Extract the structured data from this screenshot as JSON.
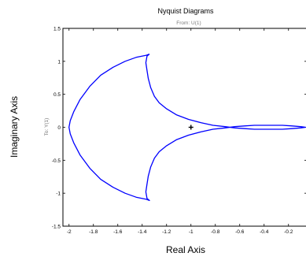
{
  "chart_data": {
    "type": "line",
    "title": "Nyquist Diagrams",
    "subtitle": "From: U(1)",
    "xlabel": "Real Axis",
    "ylabel": "Imaginary Axis",
    "output_label": "To: Y(1)",
    "xlim": [
      -2.05,
      -0.05
    ],
    "ylim": [
      -1.5,
      1.5
    ],
    "xticks": [
      -2,
      -1.8,
      -1.6,
      -1.4,
      -1.2,
      -1,
      -0.8,
      -0.6,
      -0.4,
      -0.2
    ],
    "xtick_labels": [
      "-2",
      "-1.8",
      "-1.6",
      "-1.4",
      "-1.2",
      "-1",
      "-0.8",
      "-0.6",
      "-0.4",
      "-0.2"
    ],
    "yticks": [
      -1.5,
      -1,
      -0.5,
      0,
      0.5,
      1,
      1.5
    ],
    "ytick_labels": [
      "-1.5",
      "-1",
      "-0.5",
      "0",
      "0.5",
      "1",
      "1.5"
    ],
    "grid": false,
    "critical_point": {
      "x": -1,
      "y": 0,
      "marker": "+"
    },
    "line_color": "#0000ff",
    "series": [
      {
        "x": [
          -1.34,
          -1.37,
          -1.45,
          -1.54,
          -1.64,
          -1.74,
          -1.83,
          -1.91,
          -1.96,
          -1.99,
          -2.0,
          -1.99,
          -1.96,
          -1.91,
          -1.83,
          -1.74,
          -1.64,
          -1.54,
          -1.45,
          -1.37,
          -1.34,
          -1.36,
          -1.37,
          -1.36,
          -1.35,
          -1.33,
          -1.3,
          -1.26,
          -1.2,
          -1.12,
          -1.02,
          -0.92,
          -0.82,
          -0.72,
          -0.64,
          -0.56,
          -0.48,
          -0.4,
          -0.33,
          -0.25,
          -0.17,
          -0.1,
          -0.06,
          -0.1,
          -0.17,
          -0.25,
          -0.33,
          -0.4,
          -0.48,
          -0.56,
          -0.64,
          -0.72,
          -0.82,
          -0.92,
          -1.02,
          -1.12,
          -1.2,
          -1.26,
          -1.3,
          -1.33,
          -1.35,
          -1.36,
          -1.37,
          -1.36,
          -1.34
        ],
        "y": [
          1.11,
          1.09,
          1.06,
          1.0,
          0.91,
          0.79,
          0.62,
          0.42,
          0.24,
          0.1,
          0.0,
          -0.1,
          -0.24,
          -0.42,
          -0.62,
          -0.79,
          -0.91,
          -1.0,
          -1.06,
          -1.09,
          -1.11,
          -1.08,
          -0.98,
          -0.86,
          -0.74,
          -0.6,
          -0.47,
          -0.37,
          -0.28,
          -0.19,
          -0.12,
          -0.07,
          -0.03,
          -0.01,
          0.01,
          0.02,
          0.03,
          0.03,
          0.03,
          0.03,
          0.02,
          0.01,
          0.0,
          -0.01,
          -0.02,
          -0.03,
          -0.03,
          -0.03,
          -0.03,
          -0.02,
          -0.01,
          0.01,
          0.03,
          0.07,
          0.12,
          0.19,
          0.28,
          0.37,
          0.47,
          0.6,
          0.74,
          0.86,
          0.98,
          1.08,
          1.11
        ]
      }
    ]
  }
}
